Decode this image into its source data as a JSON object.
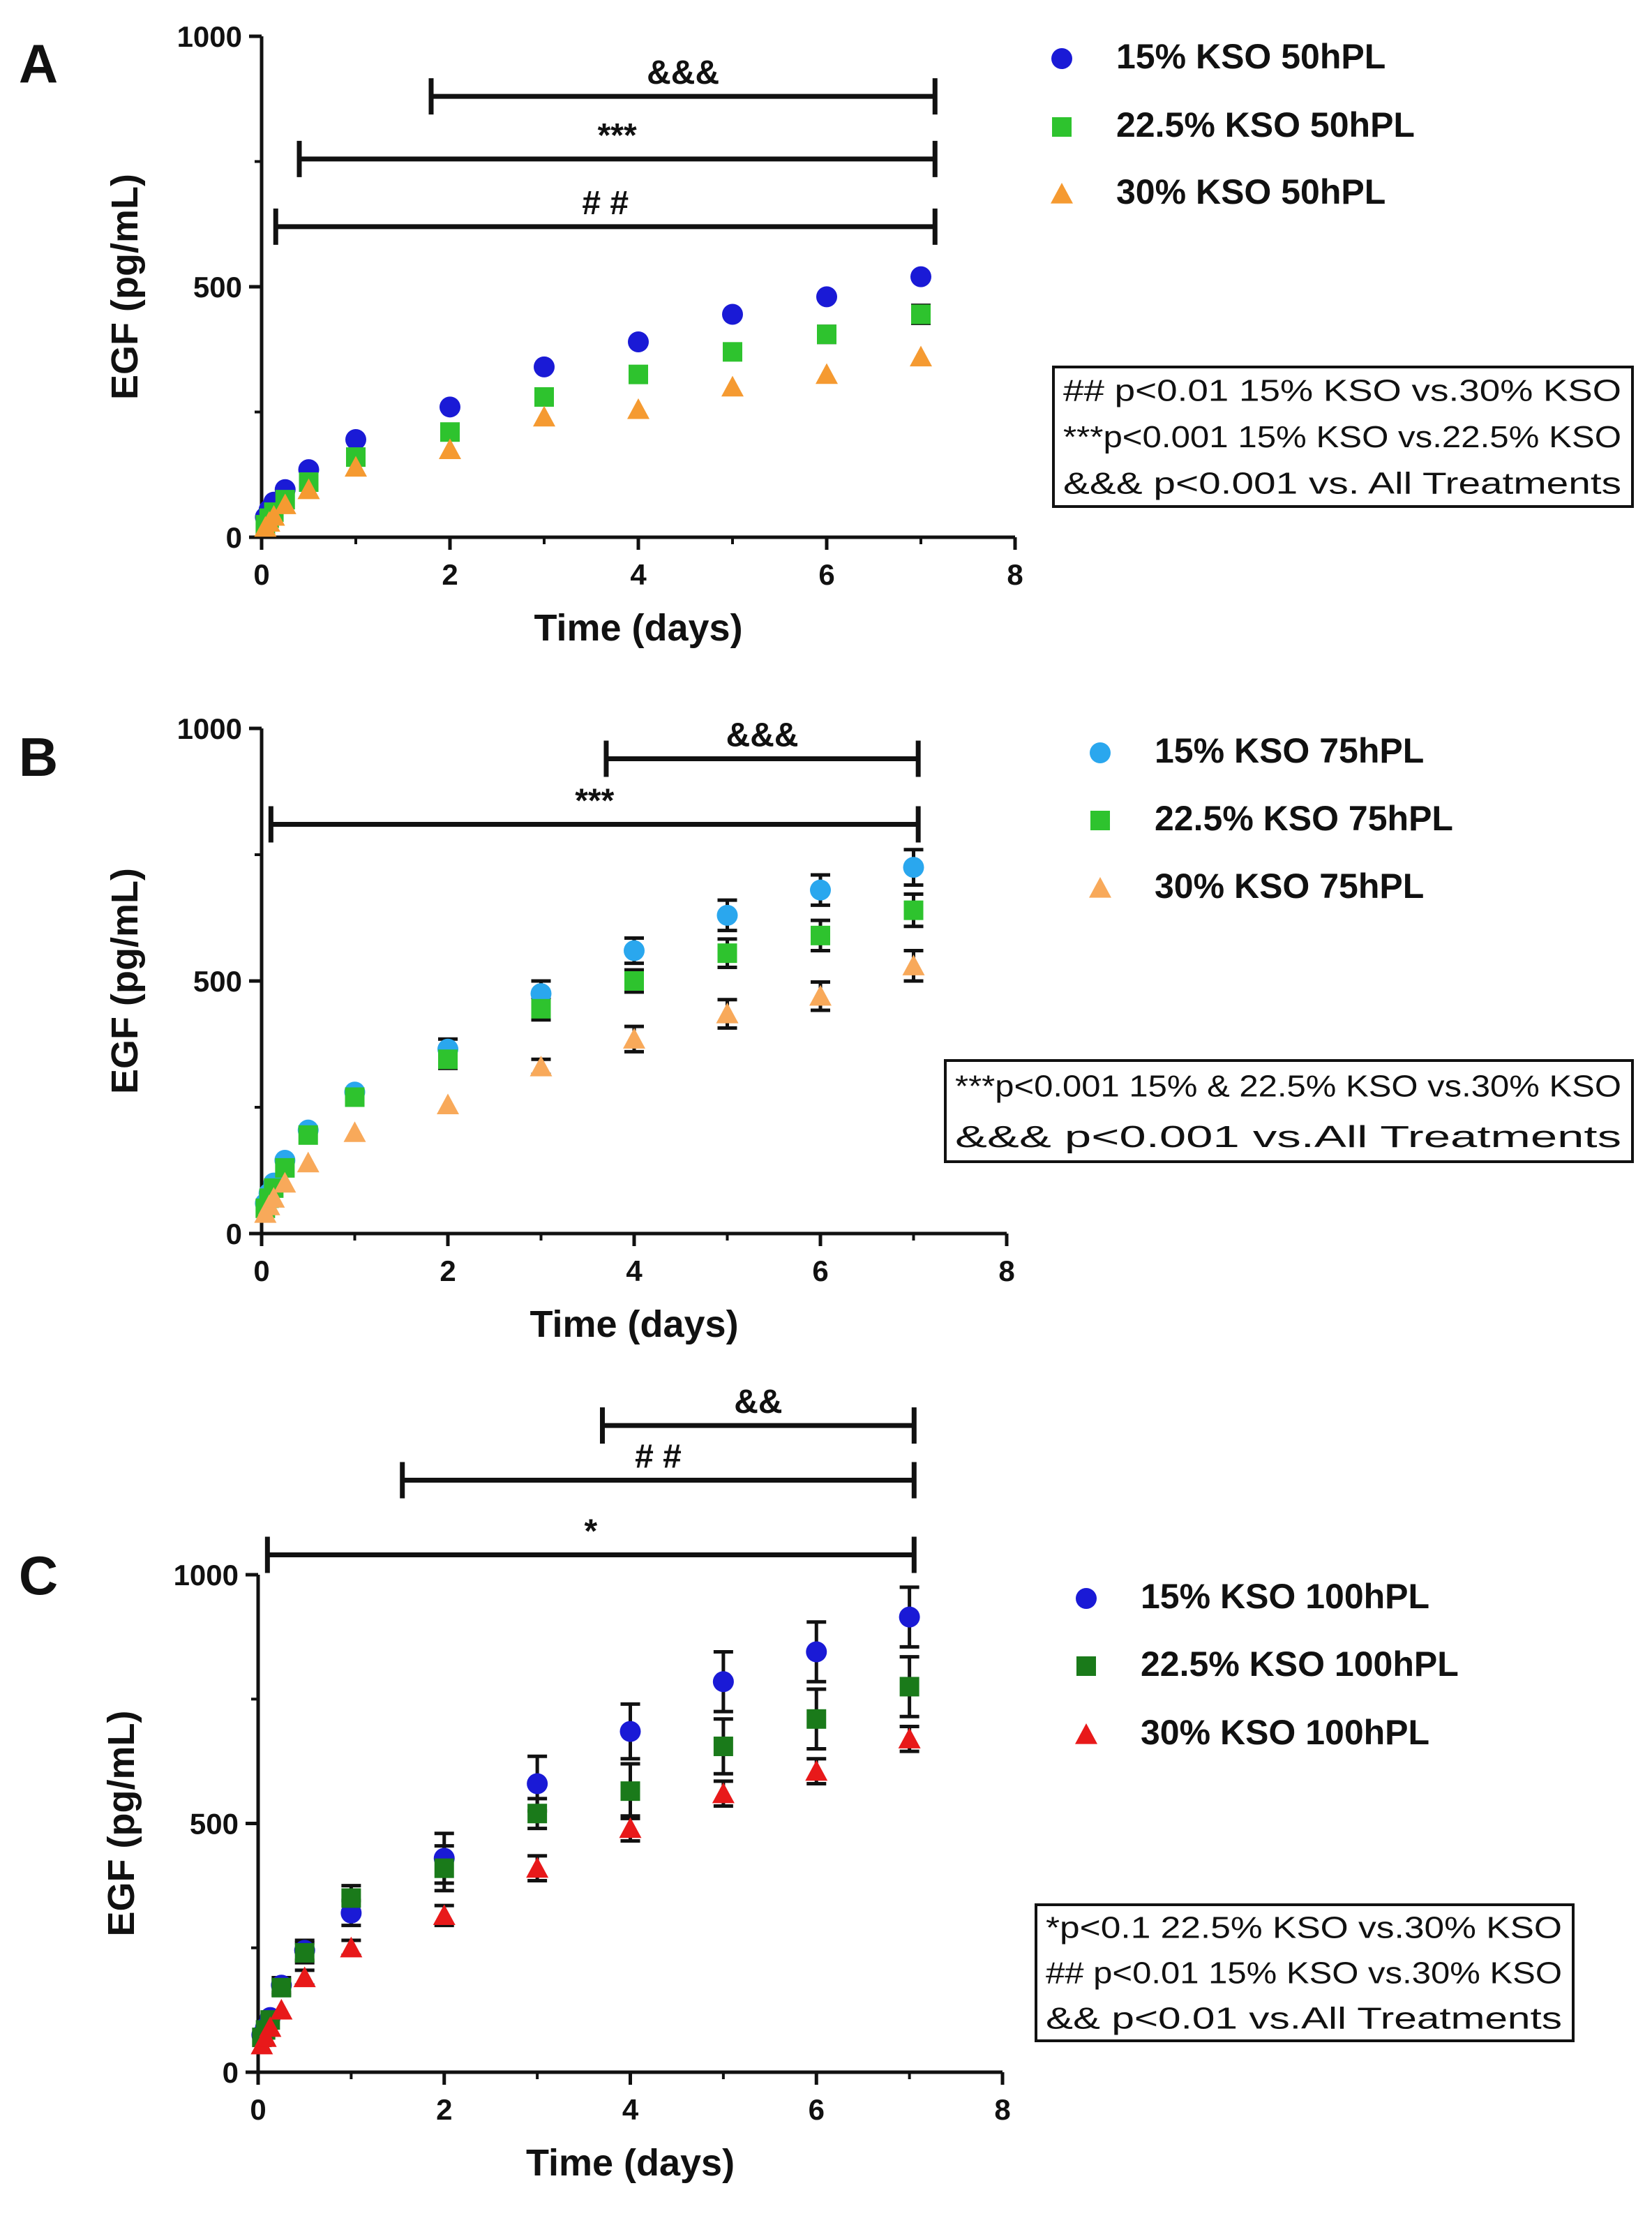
{
  "chart_data": [
    {
      "panel": "A",
      "type": "scatter",
      "xlabel": "Time (days)",
      "ylabel": "EGF (pg/mL)",
      "xlim": [
        0,
        8
      ],
      "ylim": [
        0,
        1000
      ],
      "xticks": [
        "0",
        "2",
        "4",
        "6",
        "8"
      ],
      "yticks": [
        "0",
        "500",
        "1000"
      ],
      "x": [
        0.04,
        0.08,
        0.13,
        0.25,
        0.5,
        1,
        2,
        3,
        4,
        5,
        6,
        7
      ],
      "series": [
        {
          "name": "15% KSO 50hPL",
          "marker": "circle",
          "color": "#1a1ad6",
          "values": [
            40,
            55,
            70,
            95,
            135,
            195,
            260,
            340,
            390,
            445,
            480,
            520
          ],
          "errors": []
        },
        {
          "name": "22.5% KSO 50hPL",
          "marker": "square",
          "color": "#2ec32e",
          "values": [
            25,
            38,
            50,
            75,
            110,
            160,
            210,
            280,
            325,
            370,
            405,
            445
          ],
          "errors": [
            6,
            6,
            6,
            8,
            8,
            10,
            10,
            12,
            12,
            14,
            16,
            18
          ]
        },
        {
          "name": "30% KSO 50hPL",
          "marker": "triangle",
          "color": "#f59a31",
          "values": [
            20,
            30,
            42,
            65,
            95,
            140,
            175,
            240,
            255,
            300,
            325,
            360
          ],
          "errors": []
        }
      ],
      "brackets": [
        {
          "label": "&&&",
          "x1": 1.8,
          "x2": 7.15,
          "y": 880
        },
        {
          "label": "***",
          "x1": 0.4,
          "x2": 7.15,
          "y": 755
        },
        {
          "label": "# #",
          "x1": 0.15,
          "x2": 7.15,
          "y": 620
        }
      ],
      "annotation_lines": [
        "## p<0.01 15% KSO vs.30% KSO",
        "***p<0.001 15% KSO vs.22.5% KSO",
        "&&& p<0.001 vs. All Treatments"
      ]
    },
    {
      "panel": "B",
      "type": "scatter",
      "xlabel": "Time (days)",
      "ylabel": "EGF (pg/mL)",
      "xlim": [
        0,
        8
      ],
      "ylim": [
        0,
        1000
      ],
      "xticks": [
        "0",
        "2",
        "4",
        "6",
        "8"
      ],
      "yticks": [
        "0",
        "500",
        "1000"
      ],
      "x": [
        0.04,
        0.08,
        0.13,
        0.25,
        0.5,
        1,
        2,
        3,
        4,
        5,
        6,
        7
      ],
      "series": [
        {
          "name": "15% KSO 75hPL",
          "marker": "circle",
          "color": "#2aa7ee",
          "values": [
            60,
            80,
            100,
            145,
            205,
            280,
            365,
            475,
            560,
            630,
            680,
            725
          ],
          "errors": [
            6,
            6,
            6,
            8,
            10,
            12,
            20,
            25,
            25,
            30,
            30,
            35
          ]
        },
        {
          "name": "22.5% KSO 75hPL",
          "marker": "square",
          "color": "#2ec32e",
          "values": [
            50,
            70,
            90,
            130,
            195,
            270,
            345,
            445,
            500,
            555,
            590,
            640
          ],
          "errors": [
            6,
            6,
            6,
            8,
            10,
            12,
            18,
            22,
            22,
            28,
            30,
            32
          ]
        },
        {
          "name": "30% KSO 75hPL",
          "marker": "triangle",
          "color": "#f8a95a",
          "values": [
            40,
            55,
            70,
            100,
            140,
            200,
            255,
            330,
            385,
            435,
            470,
            530
          ],
          "errors": [
            5,
            5,
            5,
            6,
            8,
            10,
            12,
            15,
            25,
            28,
            28,
            30
          ]
        }
      ],
      "brackets": [
        {
          "label": "&&&",
          "x1": 3.7,
          "x2": 7.05,
          "y": 940
        },
        {
          "label": "***",
          "x1": 0.1,
          "x2": 7.05,
          "y": 810
        }
      ],
      "annotation_lines": [
        "***p<0.001 15% & 22.5% KSO vs.30% KSO",
        "&&& p<0.001 vs.All Treatments"
      ]
    },
    {
      "panel": "C",
      "type": "scatter",
      "xlabel": "Time (days)",
      "ylabel": "EGF (pg/mL)",
      "xlim": [
        0,
        8
      ],
      "ylim": [
        0,
        1000
      ],
      "xticks": [
        "0",
        "2",
        "4",
        "6",
        "8"
      ],
      "yticks": [
        "0",
        "500",
        "1000"
      ],
      "x": [
        0.04,
        0.08,
        0.13,
        0.25,
        0.5,
        1,
        2,
        3,
        4,
        5,
        6,
        7
      ],
      "series": [
        {
          "name": "15% KSO 100hPL",
          "marker": "circle",
          "color": "#1a1ad6",
          "values": [
            75,
            90,
            110,
            175,
            245,
            320,
            430,
            580,
            685,
            785,
            845,
            915
          ],
          "errors": [
            10,
            10,
            10,
            15,
            20,
            25,
            50,
            55,
            55,
            60,
            60,
            60
          ]
        },
        {
          "name": "22.5% KSO 100hPL",
          "marker": "square",
          "color": "#1a7a1a",
          "values": [
            70,
            85,
            105,
            170,
            240,
            350,
            410,
            520,
            565,
            655,
            710,
            775
          ],
          "errors": [
            10,
            10,
            10,
            15,
            20,
            25,
            45,
            30,
            55,
            55,
            60,
            60
          ]
        },
        {
          "name": "30% KSO 100hPL",
          "marker": "triangle",
          "color": "#e8191a",
          "values": [
            55,
            70,
            90,
            125,
            190,
            250,
            315,
            410,
            490,
            560,
            605,
            670
          ],
          "errors": [
            8,
            8,
            8,
            10,
            15,
            15,
            20,
            25,
            25,
            25,
            25,
            25
          ]
        }
      ],
      "brackets": [
        {
          "label": "&&",
          "x1": 3.7,
          "x2": 7.05,
          "y": 1300
        },
        {
          "label": "# #",
          "x1": 1.55,
          "x2": 7.05,
          "y": 1190
        },
        {
          "label": "*",
          "x1": 0.1,
          "x2": 7.05,
          "y": 1040
        }
      ],
      "annotation_lines": [
        "*p<0.1 22.5% KSO vs.30% KSO",
        "## p<0.01 15% KSO vs.30% KSO",
        "&& p<0.01 vs.All Treatments"
      ]
    }
  ]
}
